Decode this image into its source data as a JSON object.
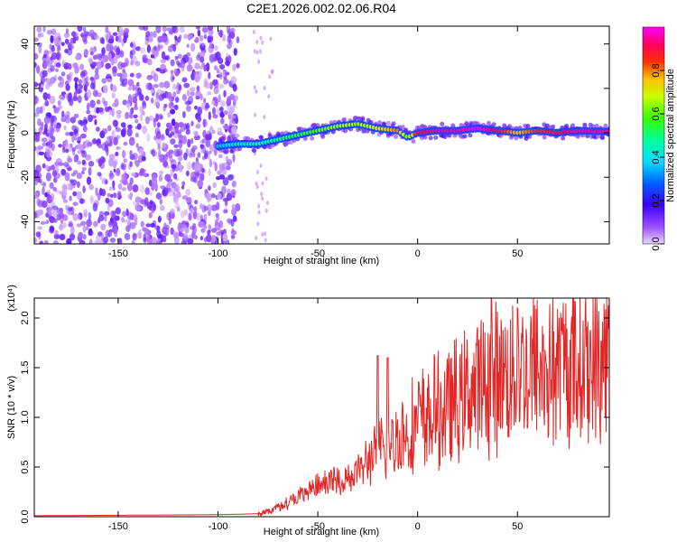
{
  "page": {
    "title": "C2E1.2026.002.02.06.R04"
  },
  "chart_data": [
    {
      "type": "heatmap",
      "title": "C2E1.2026.002.02.06.R04",
      "xlabel": "Height of straight line (km)",
      "ylabel": "Frequency (Hz)",
      "xlim": [
        -192,
        96
      ],
      "ylim": [
        -50,
        48
      ],
      "xticks": [
        -150,
        -100,
        -50,
        0,
        50
      ],
      "xtick_labels": [
        "-150",
        "-100",
        "-50",
        "0",
        "50"
      ],
      "yticks": [
        -40,
        -20,
        0,
        20,
        40
      ],
      "ytick_labels": [
        "-40",
        "-20",
        "0",
        "20",
        "40"
      ],
      "colorbar": {
        "label": "Normalized spectral amplitude",
        "range": [
          0,
          1
        ],
        "ticks": [
          0.0,
          0.2,
          0.4,
          0.6,
          0.8
        ],
        "tick_labels": [
          "0.0",
          "0.2",
          "0.4",
          "0.6",
          "0.8"
        ],
        "colormap": "purple-blue-cyan-green-yellow-red-magenta"
      },
      "noise_region": {
        "x": [
          -192,
          -90
        ],
        "y": [
          -50,
          48
        ],
        "amplitude": 0.1
      },
      "ridge": {
        "x": [
          -100,
          -90,
          -80,
          -70,
          -60,
          -50,
          -40,
          -30,
          -20,
          -10,
          -5,
          0,
          10,
          20,
          30,
          40,
          50,
          60,
          70,
          80,
          96
        ],
        "freq_hz": [
          -6,
          -5,
          -5,
          -3,
          -1,
          1,
          3,
          4,
          2,
          1,
          -2,
          0,
          1,
          1,
          2,
          1,
          0,
          1,
          0,
          1,
          0.5
        ],
        "amplitude": [
          0.35,
          0.4,
          0.45,
          0.5,
          0.55,
          0.6,
          0.65,
          0.65,
          0.7,
          0.8,
          0.6,
          0.9,
          0.95,
          0.95,
          1.0,
          0.9,
          0.75,
          0.85,
          0.9,
          0.95,
          0.95
        ]
      }
    },
    {
      "type": "line",
      "xlabel": "Height of straight line (km)",
      "ylabel": "SNR (10 * v/v)",
      "yscale_label": "(x10⁴)",
      "xlim": [
        -192,
        96
      ],
      "ylim": [
        0,
        2.2
      ],
      "xticks": [
        -150,
        -100,
        -50,
        0,
        50
      ],
      "xtick_labels": [
        "-150",
        "-100",
        "-50",
        "0",
        "50"
      ],
      "yticks": [
        0,
        0.5,
        1.0,
        1.5,
        2.0
      ],
      "ytick_labels": [
        "0.0",
        "0.5",
        "1.0",
        "1.5",
        "2.0"
      ],
      "color": "#e32626",
      "envelope": {
        "x": [
          -192,
          -100,
          -80,
          -75,
          -70,
          -65,
          -60,
          -55,
          -50,
          -45,
          -40,
          -35,
          -30,
          -25,
          -20,
          -15,
          -10,
          -5,
          0,
          10,
          20,
          30,
          40,
          50,
          60,
          70,
          80,
          96
        ],
        "y": [
          0.01,
          0.02,
          0.03,
          0.05,
          0.1,
          0.15,
          0.2,
          0.25,
          0.3,
          0.35,
          0.35,
          0.4,
          0.45,
          0.55,
          0.65,
          0.7,
          0.8,
          0.85,
          0.95,
          1.05,
          1.15,
          1.3,
          1.4,
          1.45,
          1.5,
          1.5,
          1.55,
          1.58
        ]
      },
      "peaks": [
        {
          "x": -20,
          "y": 1.62
        },
        {
          "x": -15,
          "y": 1.6
        },
        {
          "x": 37,
          "y": 2.2
        },
        {
          "x": 50,
          "y": 2.1
        }
      ]
    }
  ]
}
